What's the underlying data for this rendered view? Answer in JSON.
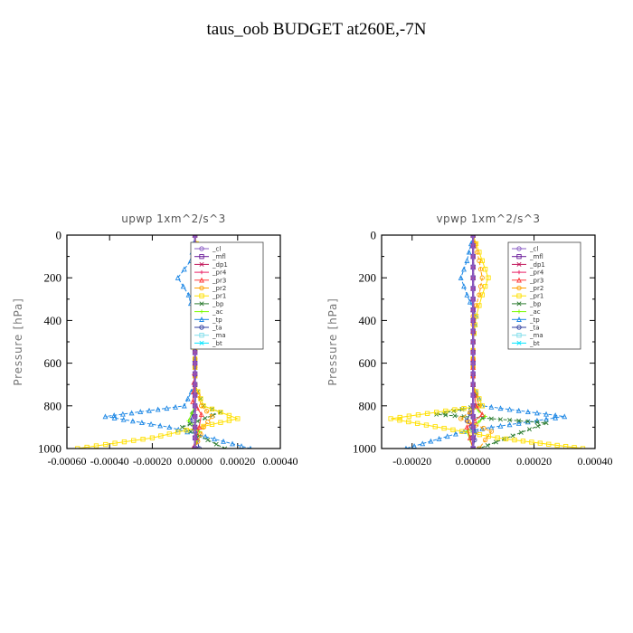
{
  "title": "taus_oob  BUDGET at260E,-7N",
  "chart_data": [
    {
      "type": "line",
      "title": "upwp   1xm^2/s^3",
      "ylabel": "Pressure [hPa]",
      "xlim": [
        -0.0006,
        0.0004
      ],
      "ylim": [
        0,
        1000
      ],
      "y_inverted": true,
      "xticks": [
        -0.0006,
        -0.0004,
        -0.0002,
        0.0,
        0.0002,
        0.0004
      ],
      "xtick_labels": [
        "-0.00060",
        "-0.00040",
        "-0.00020",
        "0.00000",
        "0.00020",
        "0.00040"
      ],
      "yticks": [
        0,
        200,
        400,
        600,
        800,
        1000
      ],
      "ytick_labels": [
        "0",
        "200",
        "400",
        "600",
        "800",
        "1000"
      ],
      "legend_position": "top-right",
      "series": [
        {
          "name": "_cl",
          "color": "#8a5cc4",
          "x": [
            0,
            0,
            0,
            0,
            0,
            0,
            0,
            0,
            0,
            0,
            0
          ],
          "y": [
            0,
            100,
            200,
            300,
            400,
            500,
            600,
            700,
            800,
            900,
            1000
          ]
        },
        {
          "name": "_mfl",
          "color": "#6a1b9a",
          "x": [
            0,
            0,
            0,
            0,
            0,
            0,
            0,
            0,
            0,
            0,
            0
          ],
          "y": [
            0,
            100,
            200,
            300,
            400,
            500,
            600,
            700,
            800,
            900,
            1000
          ]
        },
        {
          "name": "_dp1",
          "color": "#c2185b",
          "x": [
            0,
            0,
            0,
            0,
            0,
            0,
            0,
            0,
            0,
            0,
            0
          ],
          "y": [
            0,
            100,
            200,
            300,
            400,
            500,
            600,
            700,
            800,
            900,
            1000
          ]
        },
        {
          "name": "_pr4",
          "color": "#e91e63",
          "x": [
            0,
            0,
            0,
            0,
            0,
            0,
            0,
            0,
            0,
            0,
            0
          ],
          "y": [
            0,
            100,
            200,
            300,
            400,
            500,
            600,
            700,
            800,
            900,
            1000
          ]
        },
        {
          "name": "_pr3",
          "color": "#ff3b3b",
          "x": [
            0,
            0,
            0,
            0,
            0,
            0,
            0,
            -1e-05,
            3e-05,
            2e-05,
            -1e-05
          ],
          "y": [
            0,
            100,
            200,
            300,
            400,
            500,
            600,
            780,
            840,
            900,
            1000
          ]
        },
        {
          "name": "_pr2",
          "color": "#ffa000",
          "x": [
            0,
            1e-05,
            3e-05,
            1e-05,
            0,
            0,
            0,
            3e-05,
            8e-05,
            4e-05,
            0
          ],
          "y": [
            0,
            120,
            200,
            280,
            400,
            500,
            700,
            800,
            850,
            900,
            1000
          ]
        },
        {
          "name": "_pr1",
          "color": "#ffe000",
          "x": [
            0,
            2e-05,
            6e-05,
            2e-05,
            0,
            0,
            0,
            4e-05,
            0.0002,
            -0.0002,
            -0.00055
          ],
          "y": [
            0,
            120,
            200,
            280,
            400,
            500,
            700,
            800,
            860,
            950,
            1000
          ]
        },
        {
          "name": "_bp",
          "color": "#2e7d32",
          "x": [
            0,
            0,
            0,
            0,
            0,
            0,
            0,
            4e-05,
            0.00012,
            -6e-05,
            0.00014
          ],
          "y": [
            0,
            100,
            200,
            300,
            400,
            500,
            700,
            800,
            830,
            900,
            1000
          ]
        },
        {
          "name": "_ac",
          "color": "#7cfc00",
          "x": [
            0,
            0,
            0,
            0,
            0,
            0,
            0,
            0,
            -3e-05,
            2e-05,
            0
          ],
          "y": [
            0,
            100,
            200,
            300,
            400,
            500,
            700,
            800,
            870,
            920,
            1000
          ]
        },
        {
          "name": "_tp",
          "color": "#1e88e5",
          "x": [
            0,
            -2e-05,
            -8e-05,
            -3e-05,
            0,
            0,
            0,
            -5e-05,
            -0.00042,
            -0.00012,
            0.00026
          ],
          "y": [
            0,
            120,
            200,
            280,
            400,
            500,
            700,
            800,
            850,
            900,
            1000
          ]
        },
        {
          "name": "_ta",
          "color": "#303f9f",
          "x": [
            0,
            0,
            0,
            0,
            0,
            0,
            0,
            0,
            -2e-05,
            0,
            2e-05
          ],
          "y": [
            0,
            100,
            200,
            300,
            400,
            500,
            700,
            800,
            870,
            920,
            1000
          ]
        },
        {
          "name": "_ma",
          "color": "#80deea",
          "x": [
            0,
            0,
            0,
            0,
            0,
            0,
            0,
            0,
            0,
            0,
            0
          ],
          "y": [
            0,
            100,
            200,
            300,
            400,
            500,
            600,
            700,
            800,
            900,
            1000
          ]
        },
        {
          "name": "_bt",
          "color": "#00e5ff",
          "x": [
            0,
            0,
            0,
            0,
            0,
            0,
            0,
            0,
            0,
            0,
            0
          ],
          "y": [
            0,
            100,
            200,
            300,
            400,
            500,
            600,
            700,
            800,
            900,
            1000
          ]
        }
      ]
    },
    {
      "type": "line",
      "title": "vpwp   1xm^2/s^3",
      "ylabel": "Pressure [hPa]",
      "xlim": [
        -0.0003,
        0.0004
      ],
      "ylim": [
        0,
        1000
      ],
      "y_inverted": true,
      "xticks": [
        -0.0002,
        0.0,
        0.0002,
        0.0004
      ],
      "xtick_labels": [
        "-0.00020",
        "0.00000",
        "0.00020",
        "0.00040"
      ],
      "yticks": [
        0,
        200,
        400,
        600,
        800,
        1000
      ],
      "ytick_labels": [
        "0",
        "200",
        "400",
        "600",
        "800",
        "1000"
      ],
      "legend_position": "top-right",
      "series": [
        {
          "name": "_cl",
          "color": "#8a5cc4",
          "x": [
            0,
            0,
            0,
            0,
            0,
            0,
            0,
            0,
            0,
            0,
            0
          ],
          "y": [
            0,
            100,
            200,
            300,
            400,
            500,
            600,
            700,
            800,
            900,
            1000
          ]
        },
        {
          "name": "_mfl",
          "color": "#6a1b9a",
          "x": [
            0,
            0,
            0,
            0,
            0,
            0,
            0,
            0,
            0,
            0,
            0
          ],
          "y": [
            0,
            100,
            200,
            300,
            400,
            500,
            600,
            700,
            800,
            900,
            1000
          ]
        },
        {
          "name": "_dp1",
          "color": "#c2185b",
          "x": [
            0,
            0,
            0,
            0,
            0,
            0,
            0,
            0,
            0,
            0,
            0
          ],
          "y": [
            0,
            100,
            200,
            300,
            400,
            500,
            600,
            700,
            800,
            900,
            1000
          ]
        },
        {
          "name": "_pr4",
          "color": "#e91e63",
          "x": [
            0,
            0,
            0,
            0,
            0,
            0,
            0,
            0,
            0,
            0,
            0
          ],
          "y": [
            0,
            100,
            200,
            300,
            400,
            500,
            600,
            700,
            800,
            900,
            1000
          ]
        },
        {
          "name": "_pr3",
          "color": "#ff3b3b",
          "x": [
            0,
            0,
            0,
            0,
            0,
            0,
            0,
            1e-05,
            3e-05,
            -2e-05,
            0
          ],
          "y": [
            0,
            100,
            200,
            300,
            400,
            500,
            700,
            800,
            840,
            900,
            1000
          ]
        },
        {
          "name": "_pr2",
          "color": "#ffa000",
          "x": [
            0,
            2e-05,
            3e-05,
            2e-05,
            0,
            0,
            0,
            2e-05,
            -4e-05,
            6e-05,
            2e-05
          ],
          "y": [
            0,
            120,
            200,
            280,
            380,
            500,
            700,
            800,
            860,
            920,
            1000
          ]
        },
        {
          "name": "_pr1",
          "color": "#ffe000",
          "x": [
            0,
            3e-05,
            5e-05,
            3e-05,
            1e-05,
            0,
            0,
            3e-05,
            -0.00027,
            8e-05,
            0.00036
          ],
          "y": [
            0,
            120,
            200,
            280,
            380,
            500,
            700,
            800,
            860,
            950,
            1000
          ]
        },
        {
          "name": "_bp",
          "color": "#2e7d32",
          "x": [
            0,
            0,
            0,
            0,
            0,
            0,
            0,
            2e-05,
            -0.00012,
            0.00024,
            2e-05
          ],
          "y": [
            0,
            100,
            200,
            300,
            400,
            500,
            700,
            800,
            840,
            880,
            1000
          ]
        },
        {
          "name": "_ac",
          "color": "#7cfc00",
          "x": [
            0,
            0,
            0,
            0,
            0,
            0,
            0,
            0,
            4e-05,
            -2e-05,
            0
          ],
          "y": [
            0,
            100,
            200,
            300,
            400,
            500,
            700,
            800,
            850,
            920,
            1000
          ]
        },
        {
          "name": "_tp",
          "color": "#1e88e5",
          "x": [
            0,
            -2e-05,
            -4e-05,
            -2e-05,
            1e-05,
            0,
            0,
            3e-05,
            0.0003,
            -3e-05,
            -0.00022
          ],
          "y": [
            0,
            120,
            200,
            280,
            380,
            500,
            700,
            800,
            850,
            920,
            1000
          ]
        },
        {
          "name": "_ta",
          "color": "#303f9f",
          "x": [
            0,
            0,
            0,
            0,
            0,
            0,
            0,
            0,
            -2e-05,
            1e-05,
            0
          ],
          "y": [
            0,
            100,
            200,
            300,
            400,
            500,
            700,
            800,
            870,
            920,
            1000
          ]
        },
        {
          "name": "_ma",
          "color": "#80deea",
          "x": [
            0,
            0,
            0,
            0,
            0,
            0,
            0,
            0,
            0,
            0,
            0
          ],
          "y": [
            0,
            100,
            200,
            300,
            400,
            500,
            600,
            700,
            800,
            900,
            1000
          ]
        },
        {
          "name": "_bt",
          "color": "#00e5ff",
          "x": [
            0,
            0,
            0,
            0,
            0,
            0,
            0,
            0,
            0,
            0,
            0
          ],
          "y": [
            0,
            100,
            200,
            300,
            400,
            500,
            600,
            700,
            800,
            900,
            1000
          ]
        }
      ]
    }
  ]
}
